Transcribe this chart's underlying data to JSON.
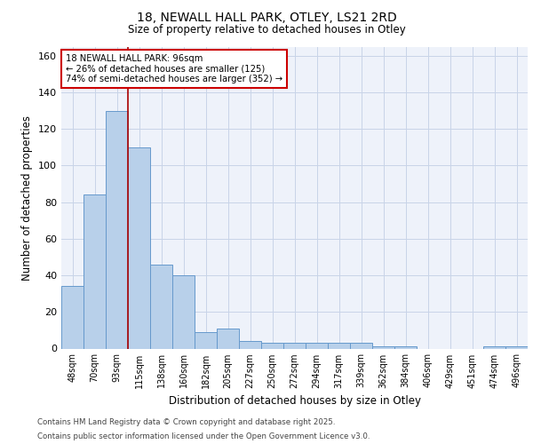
{
  "title_line1": "18, NEWALL HALL PARK, OTLEY, LS21 2RD",
  "title_line2": "Size of property relative to detached houses in Otley",
  "xlabel": "Distribution of detached houses by size in Otley",
  "ylabel": "Number of detached properties",
  "categories": [
    "48sqm",
    "70sqm",
    "93sqm",
    "115sqm",
    "138sqm",
    "160sqm",
    "182sqm",
    "205sqm",
    "227sqm",
    "250sqm",
    "272sqm",
    "294sqm",
    "317sqm",
    "339sqm",
    "362sqm",
    "384sqm",
    "406sqm",
    "429sqm",
    "451sqm",
    "474sqm",
    "496sqm"
  ],
  "values": [
    34,
    84,
    130,
    110,
    46,
    40,
    9,
    11,
    4,
    3,
    3,
    3,
    3,
    3,
    1,
    1,
    0,
    0,
    0,
    1,
    1
  ],
  "bar_color": "#b8d0ea",
  "bar_edge_color": "#6699cc",
  "grid_color": "#c8d4e8",
  "vline_x": 2.5,
  "vline_color": "#aa0000",
  "annotation_text": "18 NEWALL HALL PARK: 96sqm\n← 26% of detached houses are smaller (125)\n74% of semi-detached houses are larger (352) →",
  "annotation_box_color": "#cc0000",
  "footnote1": "Contains HM Land Registry data © Crown copyright and database right 2025.",
  "footnote2": "Contains public sector information licensed under the Open Government Licence v3.0.",
  "ylim": [
    0,
    165
  ],
  "yticks": [
    0,
    20,
    40,
    60,
    80,
    100,
    120,
    140,
    160
  ],
  "background_color": "#eef2fa",
  "fig_background": "#ffffff"
}
